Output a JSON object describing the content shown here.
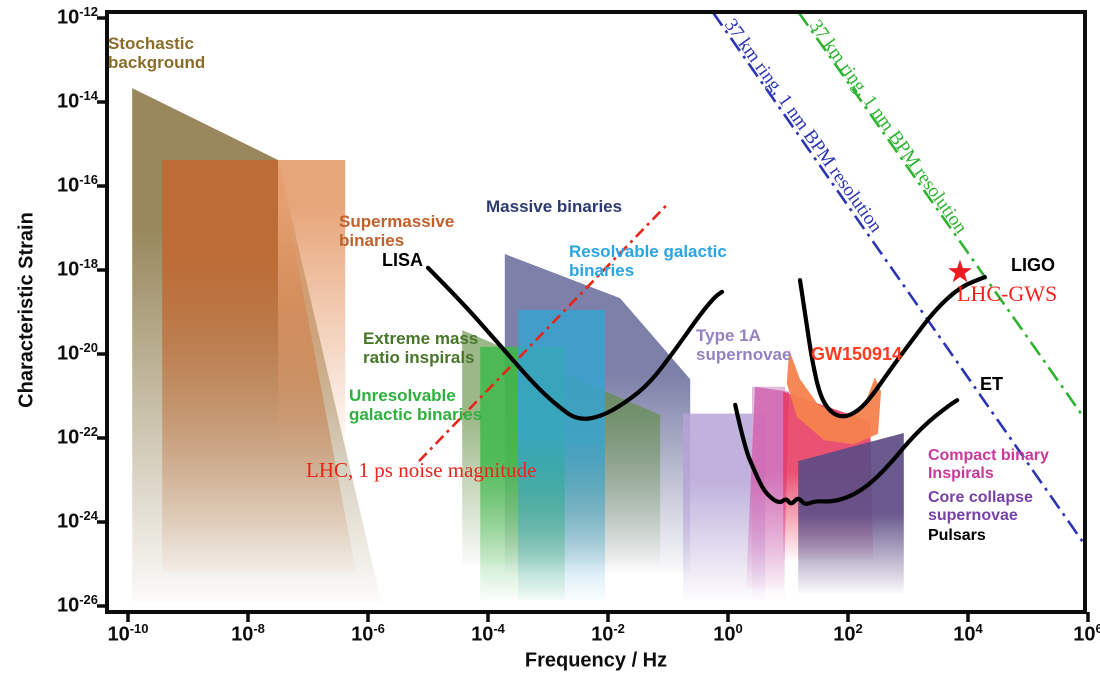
{
  "chart_data": {
    "type": "area",
    "title": "",
    "xlabel": "Frequency / Hz",
    "ylabel": "Characteristic Strain",
    "x_scale": "log",
    "y_scale": "log",
    "x_log_range": [
      -10.35,
      5.95
    ],
    "y_log_range": [
      -26.143,
      -11.857
    ],
    "tick_base": "10",
    "x_ticks_exponents": [
      -10,
      -8,
      -6,
      -4,
      -2,
      0,
      2,
      4,
      6
    ],
    "y_ticks_exponents": [
      -12,
      -14,
      -16,
      -18,
      -20,
      -22,
      -24,
      -26
    ],
    "grid": false,
    "regions": [
      {
        "name": "stochastic-background",
        "label": "Stochastic background",
        "color": "#8f7d4e",
        "opacity": 0.92,
        "fade": [
          -17.0,
          -25.9
        ],
        "points": [
          [
            -9.93,
            -13.67
          ],
          [
            -7.5,
            -15.38
          ],
          [
            -5.78,
            -25.9
          ],
          [
            -9.93,
            -25.9
          ]
        ]
      },
      {
        "name": "supermassive-binaries-dark",
        "label": "Supermassive binaries",
        "color": "#bf6a33",
        "opacity": 0.95,
        "fade": [
          -17.5,
          -25.2
        ],
        "points": [
          [
            -9.43,
            -15.38
          ],
          [
            -7.5,
            -15.38
          ],
          [
            -6.2,
            -25.2
          ],
          [
            -9.43,
            -25.2
          ]
        ]
      },
      {
        "name": "supermassive-binaries-light",
        "label": "Supermassive binaries",
        "color": "#e6a173",
        "opacity": 0.95,
        "fade": [
          -16.5,
          -22.3
        ],
        "points": [
          [
            -7.5,
            -15.38
          ],
          [
            -6.38,
            -15.38
          ],
          [
            -6.38,
            -22.3
          ],
          [
            -7.5,
            -22.3
          ]
        ]
      },
      {
        "name": "massive-binaries",
        "label": "Massive binaries",
        "color": "#6b6f9c",
        "opacity": 0.88,
        "fade": [
          -20.5,
          -25.2
        ],
        "points": [
          [
            -3.72,
            -17.62
          ],
          [
            -1.8,
            -18.67
          ],
          [
            -0.63,
            -20.6
          ],
          [
            -0.63,
            -25.2
          ],
          [
            -3.72,
            -25.2
          ]
        ]
      },
      {
        "name": "extreme-mass-ratio-inspirals",
        "label": "Extreme mass ratio inspirals",
        "color": "#5f8d40",
        "opacity": 0.62,
        "fade": [
          -21.5,
          -25.0
        ],
        "points": [
          [
            -4.43,
            -19.43
          ],
          [
            -1.13,
            -21.45
          ],
          [
            -1.13,
            -25.0
          ],
          [
            -4.43,
            -25.0
          ]
        ]
      },
      {
        "name": "unresolvable-galactic-binaries",
        "label": "Unresolvable galactic binaries",
        "color": "#3eb94b",
        "opacity": 0.85,
        "fade": [
          -22.5,
          -25.85
        ],
        "points": [
          [
            -4.13,
            -19.83
          ],
          [
            -2.72,
            -19.83
          ],
          [
            -2.72,
            -25.85
          ],
          [
            -4.13,
            -25.85
          ]
        ]
      },
      {
        "name": "resolvable-galactic-binaries",
        "label": "Resolvable galactic binaries",
        "color": "#36a3cf",
        "opacity": 0.85,
        "fade": [
          -22.0,
          -25.85
        ],
        "points": [
          [
            -3.5,
            -18.95
          ],
          [
            -2.05,
            -18.95
          ],
          [
            -2.05,
            -25.85
          ],
          [
            -3.5,
            -25.85
          ]
        ]
      },
      {
        "name": "type-1a-supernovae",
        "label": "Type 1A supernovae",
        "color": "#b5a3d7",
        "opacity": 0.85,
        "fade": [
          -23.0,
          -25.85
        ],
        "points": [
          [
            -0.75,
            -21.42
          ],
          [
            0.62,
            -21.42
          ],
          [
            0.62,
            -25.85
          ],
          [
            -0.75,
            -25.85
          ]
        ]
      },
      {
        "name": "compact-binary-inspirals-pink",
        "label": "Compact binary Inspirals",
        "color": "#dcaad4",
        "opacity": 0.8,
        "fade": [
          -22.5,
          -25.85
        ],
        "points": [
          [
            0.4,
            -20.78
          ],
          [
            0.95,
            -20.78
          ],
          [
            0.95,
            -25.85
          ],
          [
            0.4,
            -25.85
          ]
        ]
      },
      {
        "name": "compact-binary-inspirals-magenta",
        "label": "Compact binary Inspirals",
        "color": "#cf5fae",
        "opacity": 0.8,
        "fade": [
          -22.8,
          -25.6
        ],
        "points": [
          [
            0.45,
            -20.78
          ],
          [
            1.02,
            -20.9
          ],
          [
            0.93,
            -25.6
          ],
          [
            0.3,
            -25.6
          ]
        ]
      },
      {
        "name": "gw150914-crimson",
        "label": "GW150914",
        "color": "#e73a60",
        "opacity": 0.88,
        "fade": [
          -22.8,
          -24.9
        ],
        "points": [
          [
            0.92,
            -20.9
          ],
          [
            2.37,
            -21.6
          ],
          [
            2.42,
            -24.9
          ],
          [
            0.92,
            -24.9
          ]
        ]
      },
      {
        "name": "gw150914-orange",
        "label": "GW150914",
        "color": "#f5824d",
        "opacity": 0.95,
        "points": [
          [
            1.02,
            -19.9
          ],
          [
            1.2,
            -20.6
          ],
          [
            1.5,
            -21.2
          ],
          [
            1.9,
            -21.5
          ],
          [
            2.25,
            -21.3
          ],
          [
            2.45,
            -20.55
          ],
          [
            2.55,
            -20.9
          ],
          [
            2.5,
            -21.9
          ],
          [
            2.1,
            -22.15
          ],
          [
            1.6,
            -22.05
          ],
          [
            1.15,
            -21.5
          ],
          [
            0.98,
            -20.7
          ]
        ]
      },
      {
        "name": "core-collapse-supernovae",
        "label": "Core collapse supernovae",
        "color": "#5d4b84",
        "opacity": 0.92,
        "fade": [
          -23.8,
          -25.7
        ],
        "points": [
          [
            1.17,
            -22.55
          ],
          [
            2.93,
            -21.88
          ],
          [
            2.93,
            -25.7
          ],
          [
            1.17,
            -25.7
          ]
        ]
      }
    ],
    "curves": [
      {
        "name": "LISA",
        "color": "#000000",
        "width": 4.2,
        "points": [
          [
            -5.0,
            -17.95
          ],
          [
            -4.47,
            -18.71
          ],
          [
            -3.8,
            -19.79
          ],
          [
            -3.22,
            -20.74
          ],
          [
            -2.8,
            -21.29
          ],
          [
            -2.5,
            -21.57
          ],
          [
            -2.13,
            -21.5
          ],
          [
            -1.72,
            -21.17
          ],
          [
            -1.3,
            -20.69
          ],
          [
            -0.88,
            -19.9
          ],
          [
            -0.47,
            -19.07
          ],
          [
            -0.22,
            -18.64
          ],
          [
            -0.1,
            -18.52
          ]
        ]
      },
      {
        "name": "LIGO",
        "color": "#000000",
        "width": 4.2,
        "points": [
          [
            1.2,
            -18.24
          ],
          [
            1.3,
            -19.19
          ],
          [
            1.4,
            -20.14
          ],
          [
            1.53,
            -20.98
          ],
          [
            1.7,
            -21.38
          ],
          [
            1.92,
            -21.52
          ],
          [
            2.17,
            -21.36
          ],
          [
            2.4,
            -21.0
          ],
          [
            2.7,
            -20.38
          ],
          [
            3.07,
            -19.67
          ],
          [
            3.45,
            -18.95
          ],
          [
            3.87,
            -18.4
          ],
          [
            4.28,
            -18.17
          ]
        ]
      },
      {
        "name": "ET",
        "color": "#000000",
        "width": 4.2,
        "points": [
          [
            0.12,
            -21.21
          ],
          [
            0.28,
            -22.24
          ],
          [
            0.45,
            -22.81
          ],
          [
            0.58,
            -23.21
          ],
          [
            0.73,
            -23.45
          ],
          [
            0.87,
            -23.55
          ],
          [
            0.97,
            -23.43
          ],
          [
            1.05,
            -23.6
          ],
          [
            1.17,
            -23.4
          ],
          [
            1.28,
            -23.6
          ],
          [
            1.45,
            -23.5
          ],
          [
            1.73,
            -23.52
          ],
          [
            2.03,
            -23.4
          ],
          [
            2.33,
            -23.14
          ],
          [
            2.67,
            -22.67
          ],
          [
            3.03,
            -22.05
          ],
          [
            3.37,
            -21.57
          ],
          [
            3.7,
            -21.21
          ],
          [
            3.82,
            -21.1
          ]
        ]
      }
    ],
    "ref_lines": [
      {
        "name": "lhc-1ps-noise",
        "label": "LHC, 1 ps noise magnitude",
        "color": "#e82519",
        "dash": "11 5 3 5",
        "width": 2.6,
        "from": [
          -5.15,
          -22.55
        ],
        "to": [
          -1.02,
          -16.45
        ]
      },
      {
        "name": "ring-37km-blue",
        "label": "37 km ring, 1 nm BPM resolution",
        "color": "#2b35b4",
        "dash": "16 6 3 6",
        "width": 2.6,
        "from": [
          -0.25,
          -11.87
        ],
        "to": [
          5.95,
          -24.55
        ]
      },
      {
        "name": "ring-37km-green",
        "label": "37 km ring, 1 nm BPM resolution",
        "color": "#2db32f",
        "dash": "16 6 3 6",
        "width": 2.6,
        "from": [
          1.18,
          -11.87
        ],
        "to": [
          5.95,
          -21.55
        ]
      }
    ],
    "marker": {
      "name": "lhc-gws-star",
      "shape": "star",
      "color": "#ed1c24",
      "logf": 3.867,
      "logh": -18.05
    },
    "annotations": [
      {
        "name": "stochastic-background",
        "lines": [
          "Stochastic",
          "background"
        ],
        "color": "#8a6d2a",
        "size": 17,
        "logf": -10.333,
        "logh": -12.381
      },
      {
        "name": "supermassive-binaries",
        "lines": [
          "Supermassive",
          "binaries"
        ],
        "color": "#c2602c",
        "size": 17,
        "logf": -6.483,
        "logh": -16.619
      },
      {
        "name": "lisa",
        "lines": [
          "LISA"
        ],
        "color": "#000000",
        "size": 18,
        "logf": -5.767,
        "logh": -17.524
      },
      {
        "name": "massive-binaries",
        "lines": [
          "Massive binaries"
        ],
        "color": "#2e3a72",
        "size": 17,
        "logf": -4.033,
        "logh": -16.262
      },
      {
        "name": "resolvable-galactic-binaries",
        "lines": [
          "Resolvable galactic",
          "binaries"
        ],
        "color": "#2aa5e2",
        "size": 17,
        "logf": -2.65,
        "logh": -17.333
      },
      {
        "name": "extreme-mass-ratio-inspirals",
        "lines": [
          "Extreme mass",
          "ratio inspirals"
        ],
        "color": "#48762a",
        "size": 17,
        "logf": -6.083,
        "logh": -19.405
      },
      {
        "name": "unresolvable-galactic-binaries",
        "lines": [
          "Unresolvable",
          "galactic binaries"
        ],
        "color": "#2fb13d",
        "size": 17,
        "logf": -6.317,
        "logh": -20.762
      },
      {
        "name": "lhc-noise",
        "lines": [
          "LHC, 1 ps noise magnitude"
        ],
        "color": "#e82519",
        "size": 21,
        "font": "serif",
        "logf": -7.033,
        "logh": -22.5
      },
      {
        "name": "type-1a-supernovae",
        "lines": [
          "Type 1A",
          "supernovae"
        ],
        "color": "#9583c1",
        "size": 17,
        "logf": -0.533,
        "logh": -19.333
      },
      {
        "name": "gw150914",
        "lines": [
          "GW150914"
        ],
        "color": "#ff3c1e",
        "size": 18,
        "logf": 1.383,
        "logh": -19.762
      },
      {
        "name": "compact-binary-inspirals",
        "lines": [
          "Compact binary",
          "Inspirals"
        ],
        "color": "#c8399b",
        "size": 16,
        "logf": 3.333,
        "logh": -22.214
      },
      {
        "name": "core-collapse-supernovae",
        "lines": [
          "Core collapse",
          "supernovae"
        ],
        "color": "#7840a8",
        "size": 16,
        "logf": 3.333,
        "logh": -23.214
      },
      {
        "name": "pulsars",
        "lines": [
          "Pulsars"
        ],
        "color": "#000000",
        "size": 16,
        "logf": 3.333,
        "logh": -24.119
      },
      {
        "name": "et",
        "lines": [
          "ET"
        ],
        "color": "#000000",
        "size": 18,
        "logf": 4.2,
        "logh": -20.476
      },
      {
        "name": "ligo",
        "lines": [
          "LIGO"
        ],
        "color": "#000000",
        "size": 18,
        "logf": 4.717,
        "logh": -17.643
      },
      {
        "name": "lhc-gws",
        "lines": [
          "LHC-GWS"
        ],
        "color": "#f4241c",
        "size": 22,
        "font": "serif",
        "logf": 3.817,
        "logh": -18.286
      },
      {
        "name": "ring-blue-label",
        "lines": [
          "37 km ring, 1 nm BPM resolution"
        ],
        "color": "#2b35b4",
        "size": 19,
        "font": "serif",
        "rotation": 54.5,
        "logf": 0.15,
        "logh": -11.93
      },
      {
        "name": "ring-green-label",
        "lines": [
          "37 km ring, 1 nm BPM resolution"
        ],
        "color": "#2db32f",
        "size": 19,
        "font": "serif",
        "rotation": 54.5,
        "logf": 1.567,
        "logh": -11.95
      }
    ]
  }
}
